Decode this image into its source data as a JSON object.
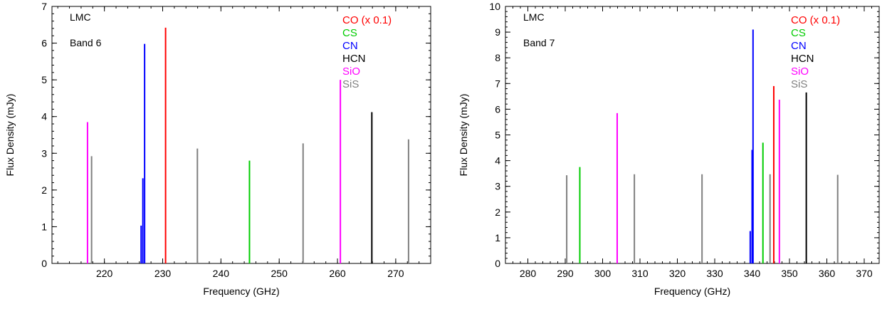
{
  "chart_data": [
    {
      "type": "bar",
      "ylabel": "Flux Density (mJy)",
      "xlabel": "Frequency (GHz)",
      "xlim": [
        211,
        276
      ],
      "ylim": [
        0,
        7
      ],
      "xticks": [
        220,
        230,
        240,
        250,
        260,
        270
      ],
      "xtick_labels": [
        "220",
        "230",
        "240",
        "250",
        "260",
        "270"
      ],
      "x_minor_step": 2,
      "yticks": [
        0,
        1,
        2,
        3,
        4,
        5,
        6,
        7
      ],
      "ytick_labels": [
        "0",
        "1",
        "2",
        "3",
        "4",
        "5",
        "6",
        "7"
      ],
      "y_minor_step": 0.2,
      "annotations": [
        "LMC",
        "Band 6"
      ],
      "legend_position": "top-right",
      "series": [
        {
          "name": "CO (x 0.1)",
          "color": "#ff0000",
          "lines": [
            {
              "x": 230.5,
              "y": 6.42
            }
          ]
        },
        {
          "name": "CS",
          "color": "#00cc00",
          "lines": [
            {
              "x": 244.9,
              "y": 2.8
            }
          ]
        },
        {
          "name": "CN",
          "color": "#0000ff",
          "lines": [
            {
              "x": 226.3,
              "y": 1.03
            },
            {
              "x": 226.6,
              "y": 2.32
            },
            {
              "x": 226.9,
              "y": 5.98
            }
          ]
        },
        {
          "name": "HCN",
          "color": "#000000",
          "lines": [
            {
              "x": 265.9,
              "y": 4.12
            }
          ]
        },
        {
          "name": "SiO",
          "color": "#ff00ff",
          "lines": [
            {
              "x": 217.1,
              "y": 3.85
            },
            {
              "x": 260.5,
              "y": 5.0
            }
          ]
        },
        {
          "name": "SiS",
          "color": "#808080",
          "lines": [
            {
              "x": 217.8,
              "y": 2.92
            },
            {
              "x": 235.96,
              "y": 3.13
            },
            {
              "x": 254.1,
              "y": 3.27
            },
            {
              "x": 272.2,
              "y": 3.38
            }
          ]
        }
      ]
    },
    {
      "type": "bar",
      "ylabel": "Flux Density (mJy)",
      "xlabel": "Frequency (GHz)",
      "xlim": [
        274,
        374
      ],
      "ylim": [
        0,
        10
      ],
      "xticks": [
        280,
        290,
        300,
        310,
        320,
        330,
        340,
        350,
        360,
        370
      ],
      "xtick_labels": [
        "280",
        "290",
        "300",
        "310",
        "320",
        "330",
        "340",
        "350",
        "360",
        "370"
      ],
      "x_minor_step": 2,
      "yticks": [
        0,
        1,
        2,
        3,
        4,
        5,
        6,
        7,
        8,
        9,
        10
      ],
      "ytick_labels": [
        "0",
        "1",
        "2",
        "3",
        "4",
        "5",
        "6",
        "7",
        "8",
        "9",
        "10"
      ],
      "y_minor_step": 0.2,
      "annotations": [
        "LMC",
        "Band 7"
      ],
      "legend_position": "top-right",
      "series": [
        {
          "name": "CO (x 0.1)",
          "color": "#ff0000",
          "lines": [
            {
              "x": 345.8,
              "y": 6.9
            }
          ]
        },
        {
          "name": "CS",
          "color": "#00cc00",
          "lines": [
            {
              "x": 293.9,
              "y": 3.75
            },
            {
              "x": 342.9,
              "y": 4.7
            }
          ]
        },
        {
          "name": "CN",
          "color": "#0000ff",
          "lines": [
            {
              "x": 339.5,
              "y": 1.26
            },
            {
              "x": 340.0,
              "y": 4.42
            },
            {
              "x": 340.25,
              "y": 9.1
            }
          ]
        },
        {
          "name": "HCN",
          "color": "#000000",
          "lines": [
            {
              "x": 354.5,
              "y": 6.65
            }
          ]
        },
        {
          "name": "SiO",
          "color": "#ff00ff",
          "lines": [
            {
              "x": 303.9,
              "y": 5.85
            },
            {
              "x": 347.3,
              "y": 6.37
            }
          ]
        },
        {
          "name": "SiS",
          "color": "#808080",
          "lines": [
            {
              "x": 290.4,
              "y": 3.43
            },
            {
              "x": 308.5,
              "y": 3.47
            },
            {
              "x": 326.6,
              "y": 3.47
            },
            {
              "x": 344.8,
              "y": 3.47
            },
            {
              "x": 362.9,
              "y": 3.45
            }
          ]
        }
      ]
    }
  ]
}
